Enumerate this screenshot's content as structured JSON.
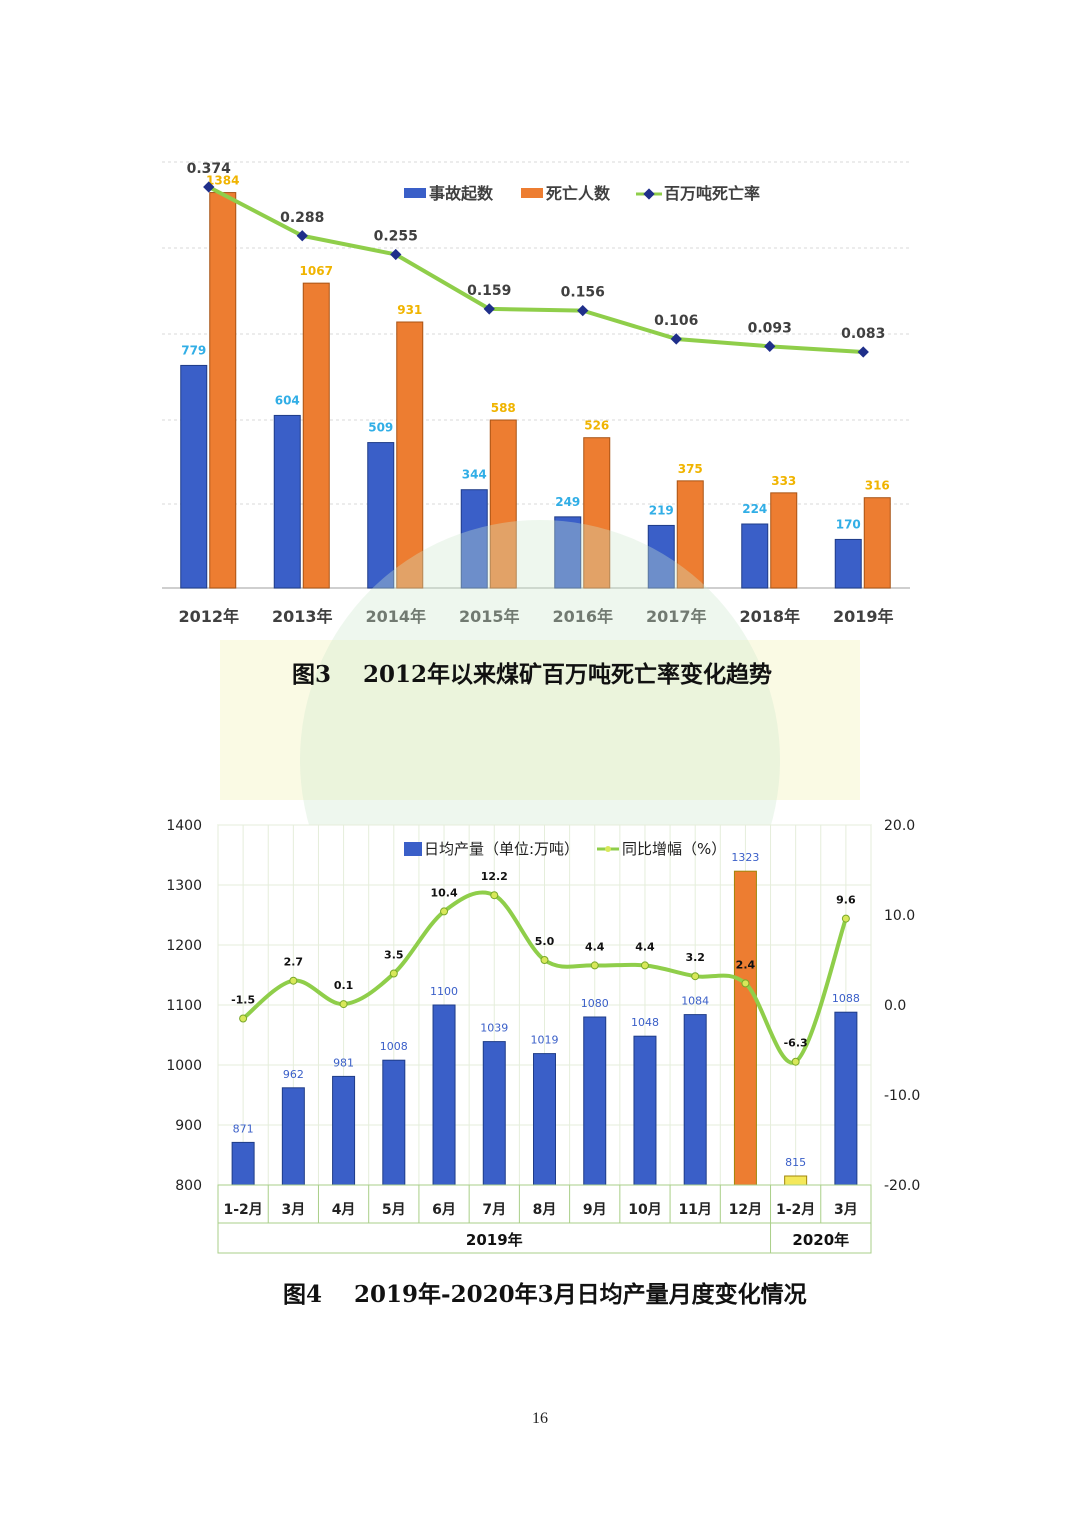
{
  "chart_data": [
    {
      "type": "bar",
      "title": "图3 2012年以来煤矿百万吨死亡率变化趋势",
      "categories": [
        "2012年",
        "2013年",
        "2014年",
        "2015年",
        "2016年",
        "2017年",
        "2018年",
        "2019年"
      ],
      "series": [
        {
          "name": "事故起数",
          "kind": "bar",
          "color": "#3a5fc8",
          "values": [
            779,
            604,
            509,
            344,
            249,
            219,
            224,
            170
          ]
        },
        {
          "name": "死亡人数",
          "kind": "bar",
          "color": "#ed7d31",
          "values": [
            1384,
            1067,
            931,
            588,
            526,
            375,
            333,
            316
          ]
        },
        {
          "name": "百万吨死亡率",
          "kind": "line",
          "color": "#8fce4a",
          "values": [
            0.374,
            0.288,
            0.255,
            0.159,
            0.156,
            0.106,
            0.093,
            0.083
          ]
        }
      ],
      "legend": "top-right",
      "grid": true
    },
    {
      "type": "bar",
      "title": "图4 2019年-2020年3月日均产量月度变化情况",
      "categories": [
        "1-2月",
        "3月",
        "4月",
        "5月",
        "6月",
        "7月",
        "8月",
        "9月",
        "10月",
        "11月",
        "12月",
        "1-2月",
        "3月"
      ],
      "groups": [
        {
          "label": "2019年",
          "count": 11
        },
        {
          "label": "2020年",
          "count": 2
        }
      ],
      "series": [
        {
          "name": "日均产量（单位:万吨）",
          "kind": "bar",
          "color": "#3a5fc8",
          "values": [
            871,
            962,
            981,
            1008,
            1100,
            1039,
            1019,
            1080,
            1048,
            1084,
            1323,
            815,
            1088
          ],
          "highlight_colors": {
            "10": "#ed7d31",
            "11": "#f4e85a"
          }
        },
        {
          "name": "同比增幅（%）",
          "kind": "line",
          "color": "#8fce4a",
          "axis": "right",
          "values": [
            -1.5,
            2.7,
            0.1,
            3.5,
            10.4,
            12.2,
            5.0,
            4.4,
            4.4,
            3.2,
            2.4,
            -6.3,
            9.6
          ]
        }
      ],
      "ylim": [
        800,
        1400
      ],
      "yticks": [
        "1400",
        "1300",
        "1200",
        "1100",
        "1000",
        "900",
        "800"
      ],
      "y2lim": [
        -20,
        20
      ],
      "y2ticks": [
        "20.0",
        "10.0",
        "0.0",
        "-10.0",
        "-20.0"
      ],
      "legend": "top-center",
      "grid": true
    }
  ],
  "captions": {
    "fig3": "图3    2012年以来煤矿百万吨死亡率变化趋势",
    "fig4": "图4    2019年-2020年3月日均产量月度变化情况"
  },
  "page_number": "16"
}
